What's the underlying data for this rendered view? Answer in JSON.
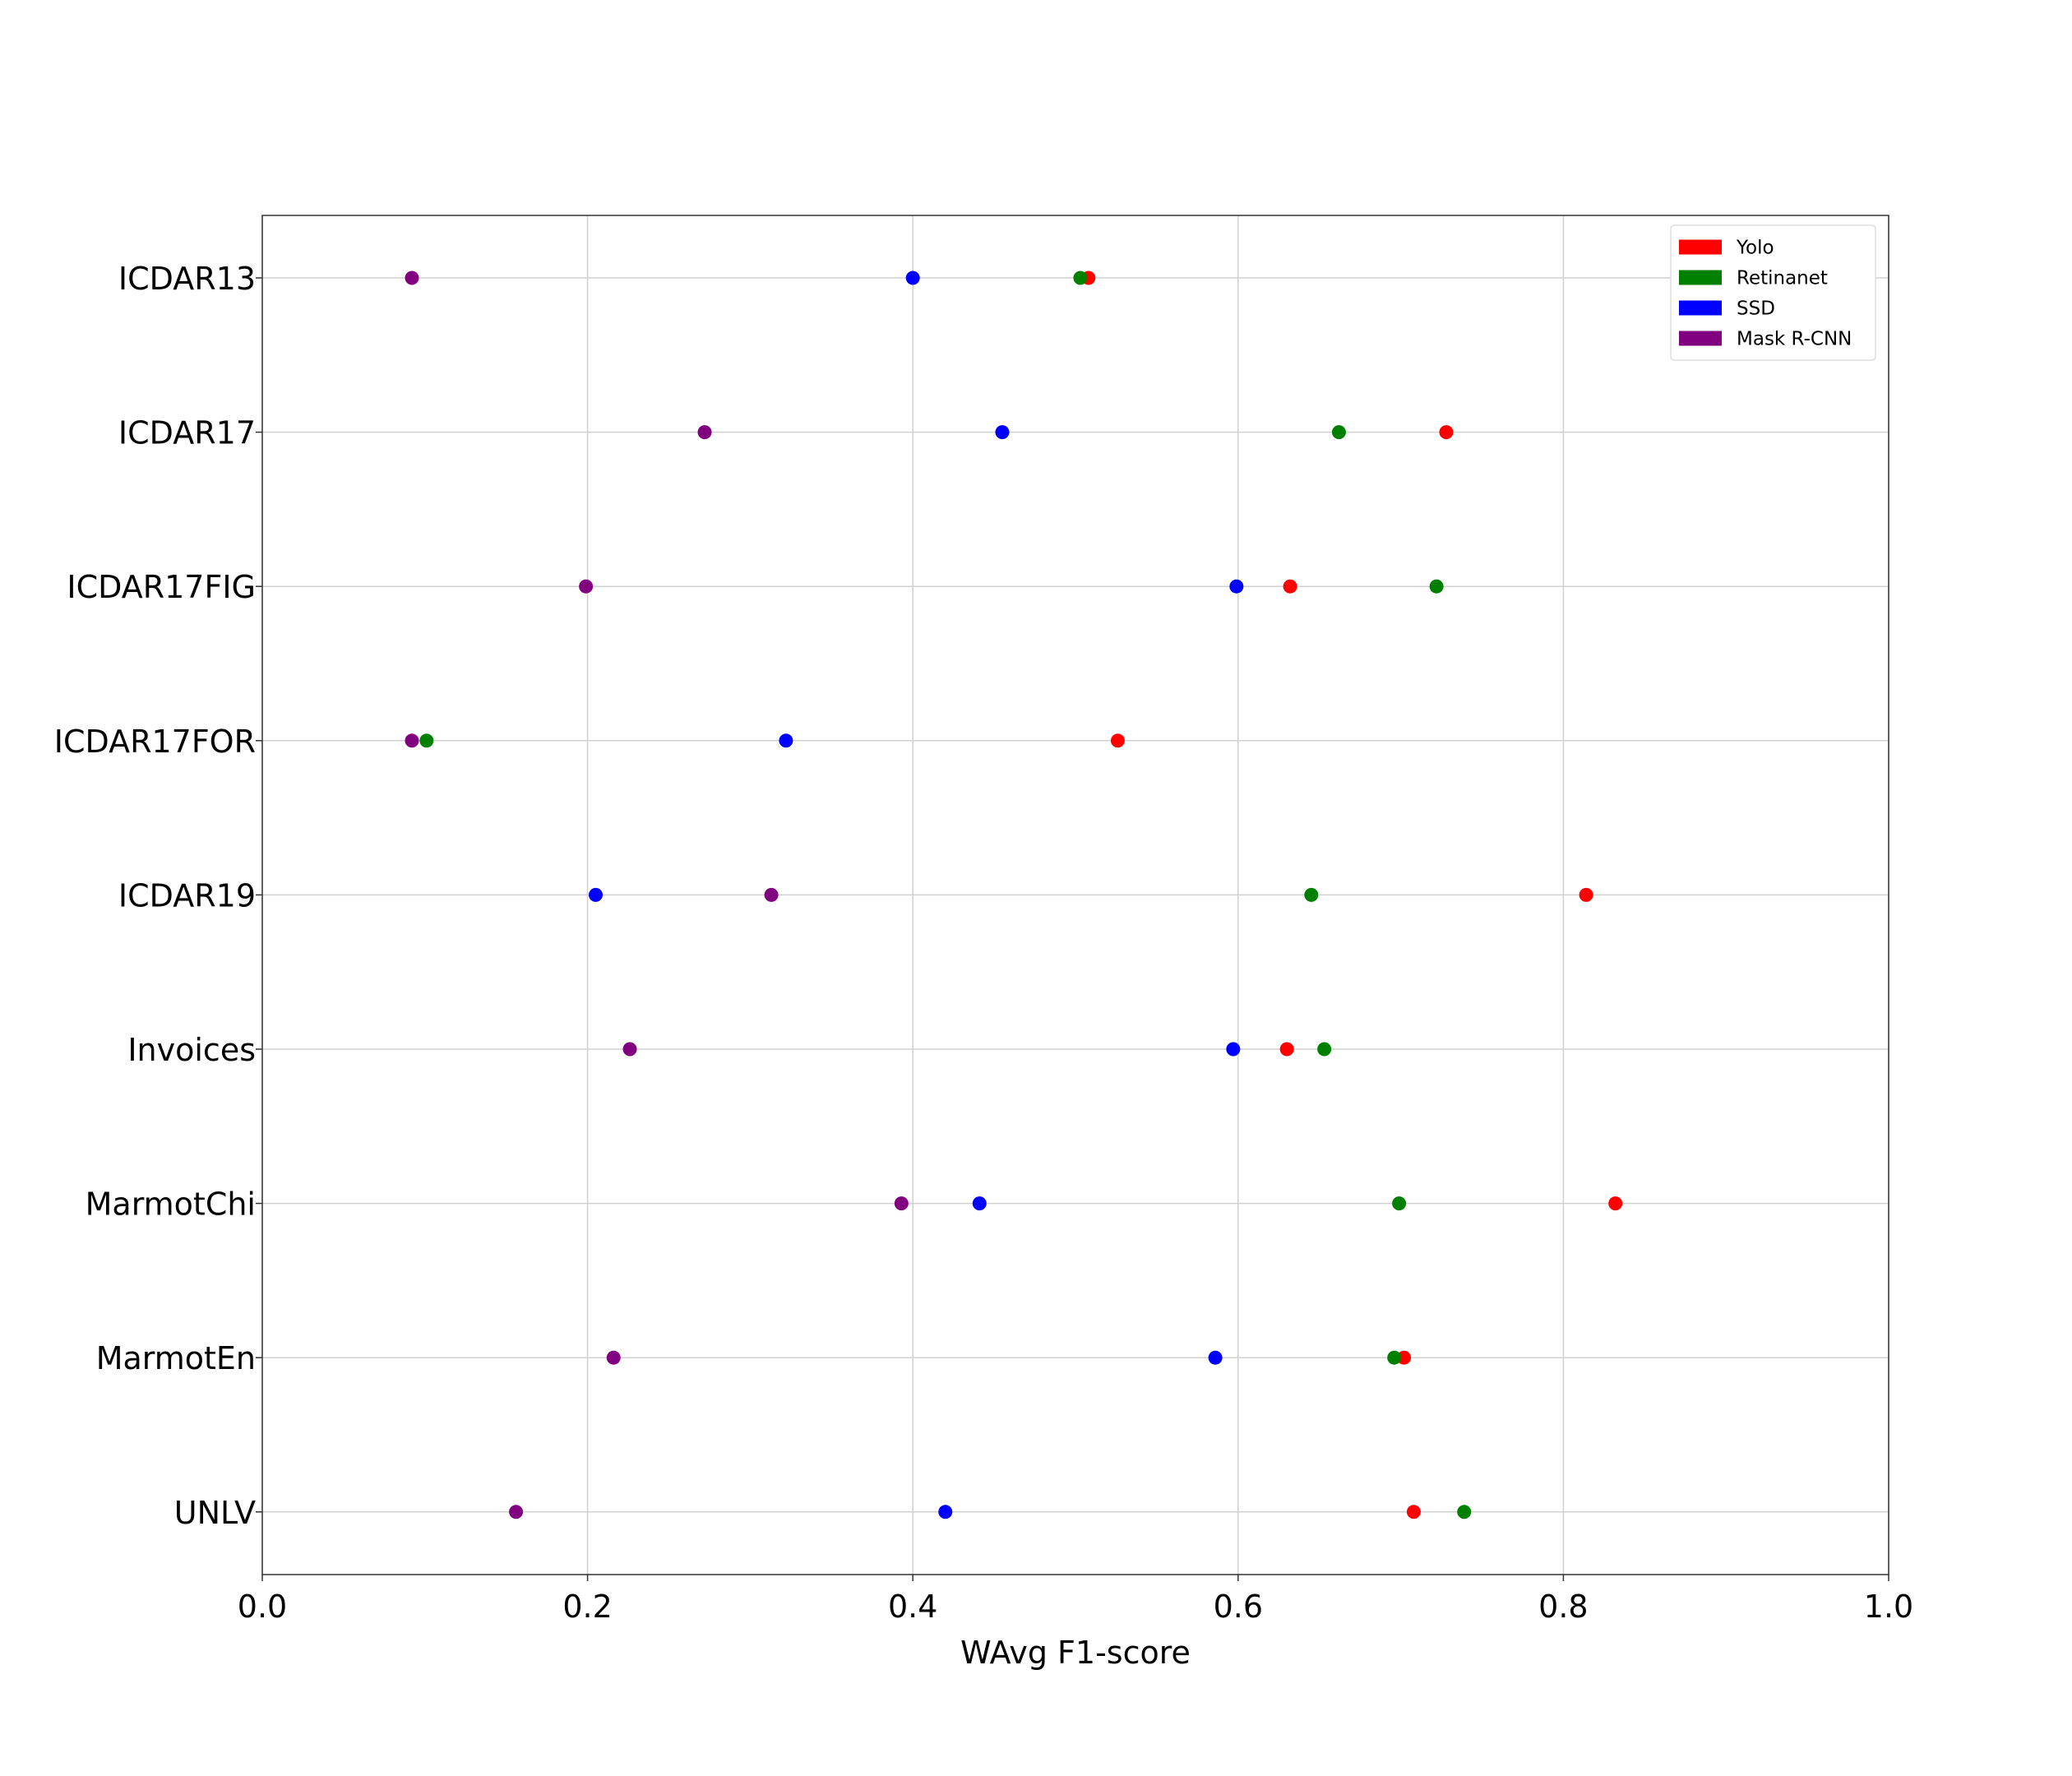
{
  "chart_data": {
    "type": "scatter",
    "title": "",
    "xlabel": "WAvg F1-score",
    "ylabel": "",
    "xlim": [
      0.0,
      1.0
    ],
    "x_ticks": [
      0.0,
      0.2,
      0.4,
      0.6,
      0.8,
      1.0
    ],
    "x_tick_labels": [
      "0.0",
      "0.2",
      "0.4",
      "0.6",
      "0.8",
      "1.0"
    ],
    "grid": true,
    "legend_position": "top-right",
    "categories": [
      "ICDAR13",
      "ICDAR17",
      "ICDAR17FIG",
      "ICDAR17FOR",
      "ICDAR19",
      "Invoices",
      "MarmotChi",
      "MarmotEn",
      "UNLV"
    ],
    "series": [
      {
        "name": "Yolo",
        "color": "#ff0000",
        "values": [
          0.508,
          0.728,
          0.632,
          0.526,
          0.814,
          0.63,
          0.832,
          0.702,
          0.708
        ]
      },
      {
        "name": "Retinanet",
        "color": "#008000",
        "values": [
          0.503,
          0.662,
          0.722,
          0.101,
          0.645,
          0.653,
          0.699,
          0.696,
          0.739
        ]
      },
      {
        "name": "SSD",
        "color": "#0000ff",
        "values": [
          0.4,
          0.455,
          0.599,
          0.322,
          0.205,
          0.597,
          0.441,
          0.586,
          0.42
        ]
      },
      {
        "name": "Mask R-CNN",
        "color": "#800080",
        "values": [
          0.092,
          0.272,
          0.199,
          0.092,
          0.313,
          0.226,
          0.393,
          0.216,
          0.156
        ]
      }
    ]
  }
}
